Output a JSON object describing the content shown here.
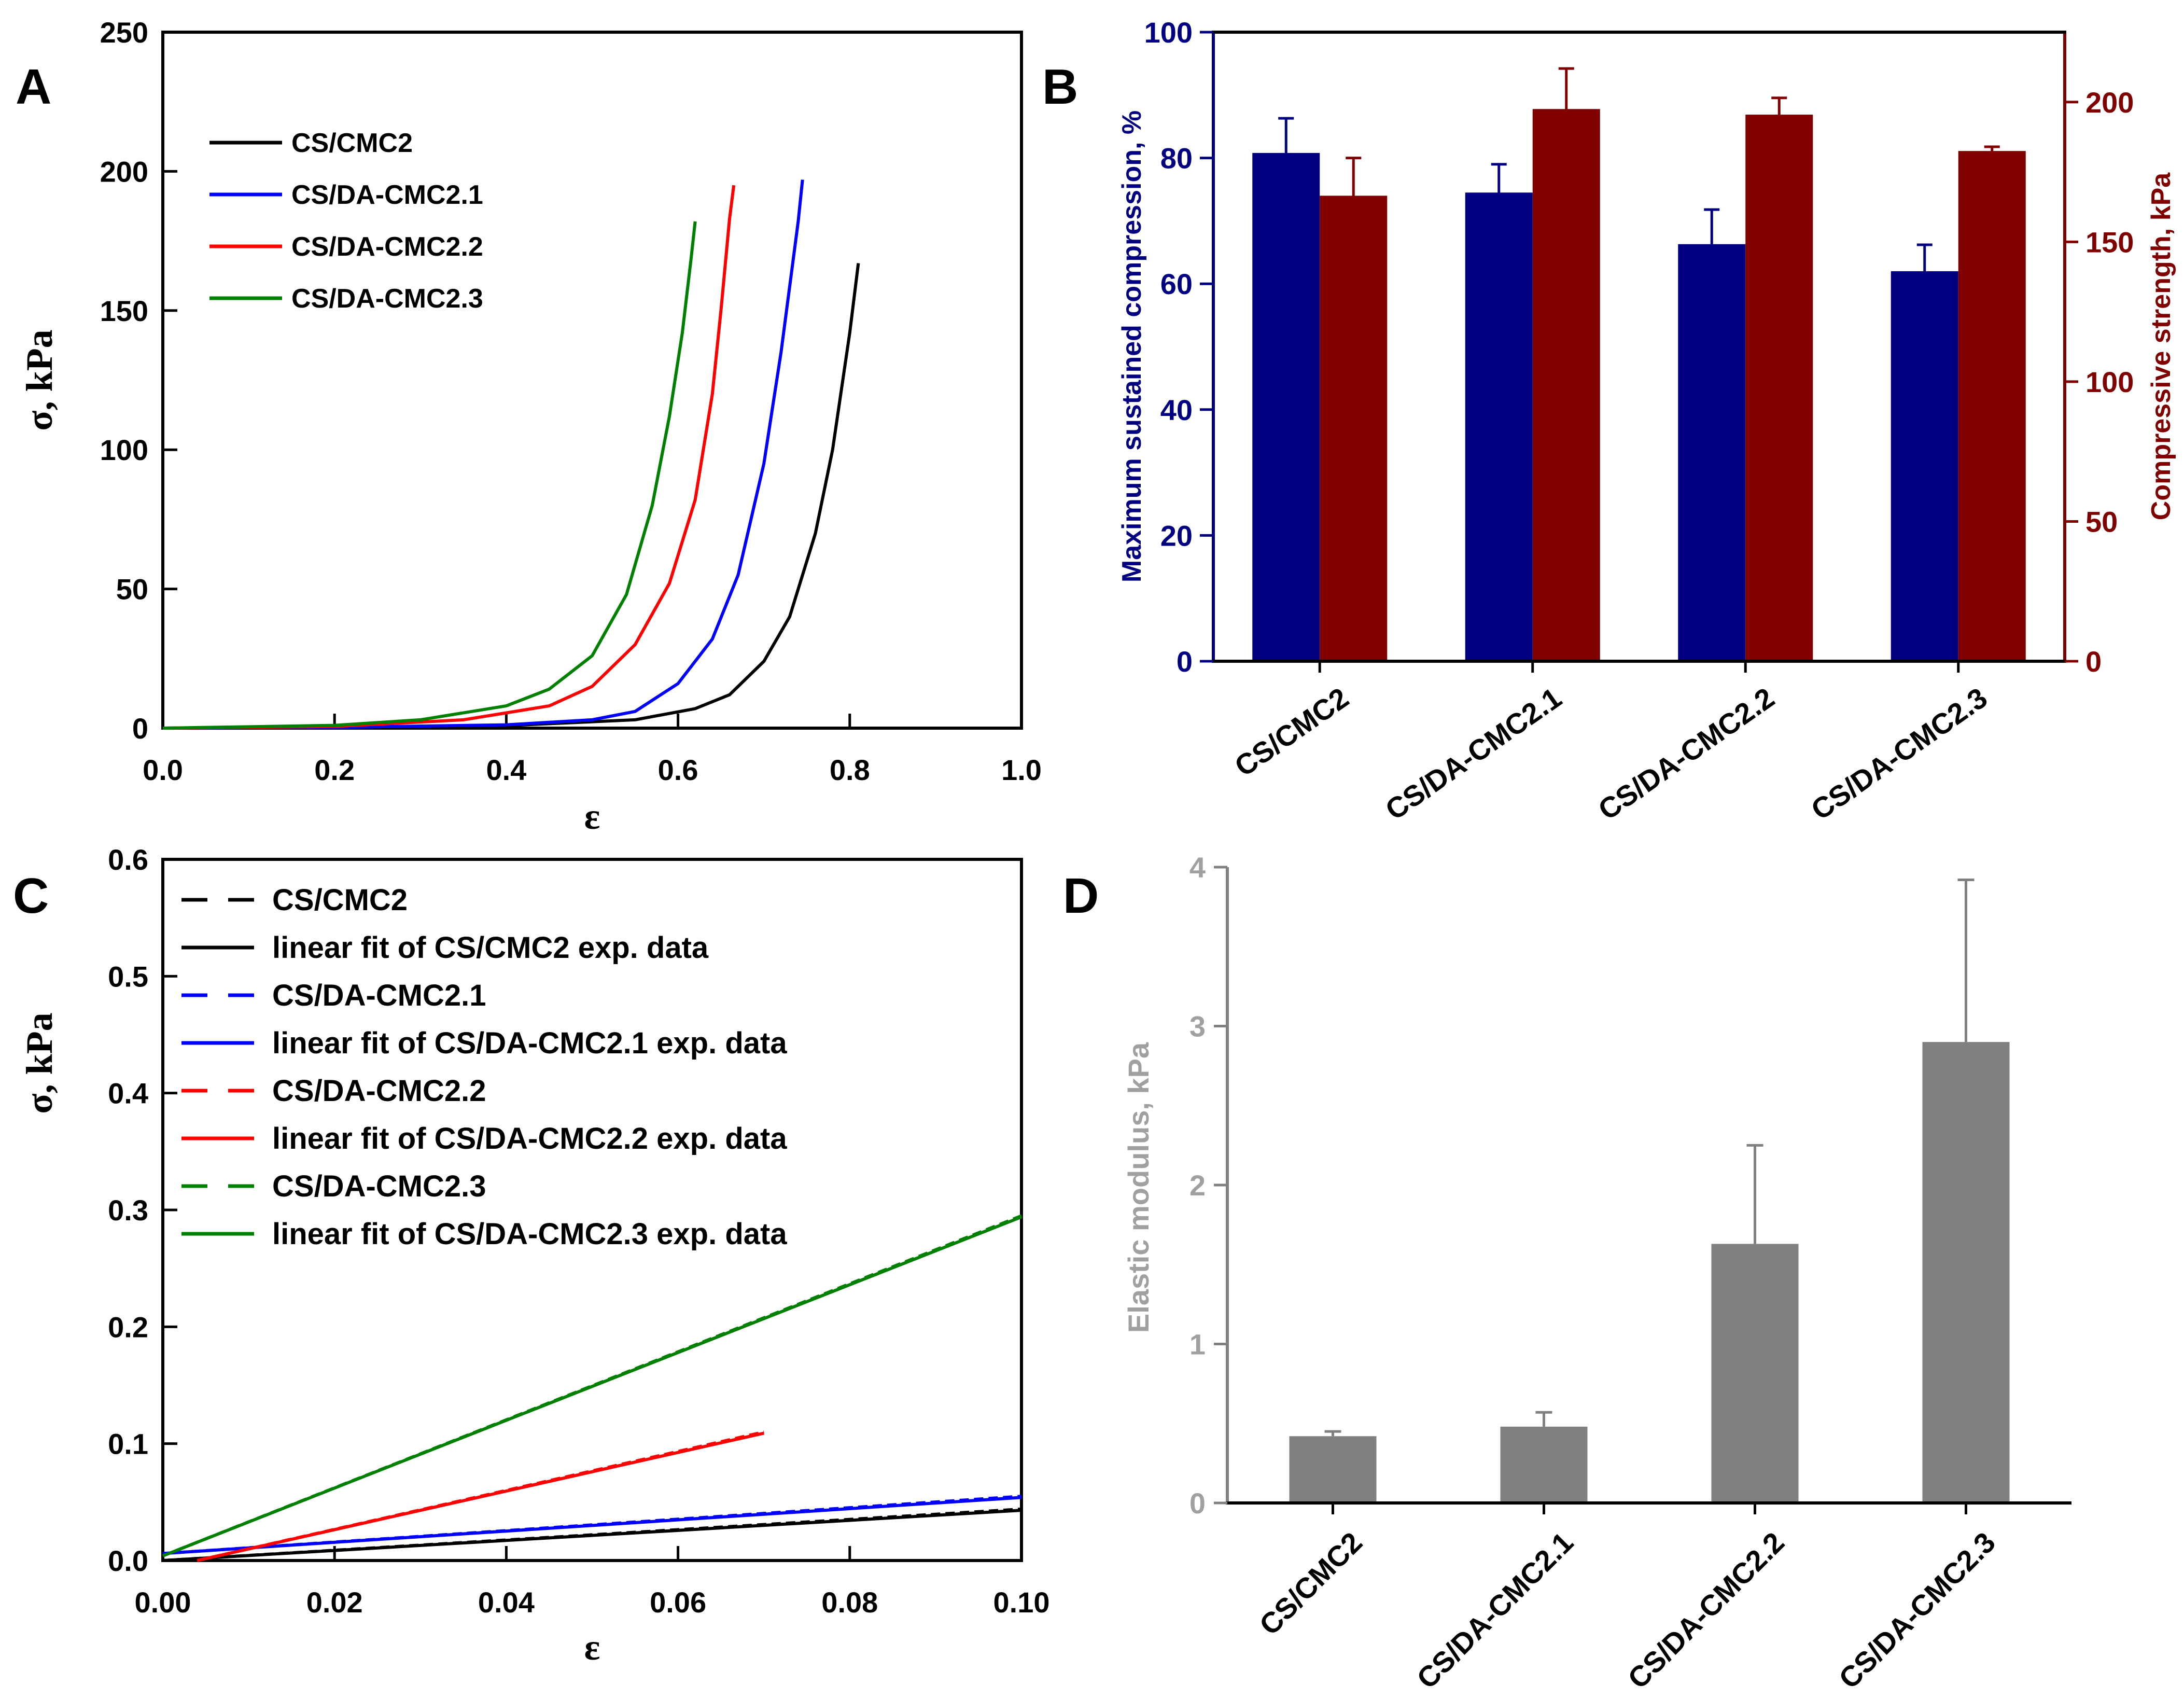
{
  "chart_data": [
    {
      "panel": "A",
      "type": "line",
      "xlabel": "ε",
      "ylabel": "σ, kPa",
      "xlim": [
        0.0,
        1.0
      ],
      "ylim": [
        0,
        250
      ],
      "xticks": [
        "0.0",
        "0.2",
        "0.4",
        "0.6",
        "0.8",
        "1.0"
      ],
      "yticks": [
        "0",
        "50",
        "100",
        "150",
        "200",
        "250"
      ],
      "legend_position": "top-left",
      "series": [
        {
          "name": "CS/CMC2",
          "color": "#000000",
          "x": [
            0.0,
            0.2,
            0.4,
            0.55,
            0.62,
            0.66,
            0.7,
            0.73,
            0.76,
            0.78,
            0.8,
            0.81
          ],
          "y": [
            0,
            0.3,
            0.9,
            3,
            7,
            12,
            24,
            40,
            70,
            100,
            142,
            167
          ]
        },
        {
          "name": "CS/DA-CMC2.1",
          "color": "#0000ff",
          "x": [
            0.0,
            0.2,
            0.4,
            0.5,
            0.55,
            0.6,
            0.64,
            0.67,
            0.7,
            0.72,
            0.74,
            0.745
          ],
          "y": [
            0,
            0.3,
            1.2,
            3,
            6,
            16,
            32,
            55,
            95,
            135,
            182,
            197
          ]
        },
        {
          "name": "CS/DA-CMC2.2",
          "color": "#ff0000",
          "x": [
            0.0,
            0.2,
            0.35,
            0.45,
            0.5,
            0.55,
            0.59,
            0.62,
            0.64,
            0.65,
            0.66,
            0.665
          ],
          "y": [
            0,
            0.6,
            3,
            8,
            15,
            30,
            52,
            82,
            120,
            150,
            183,
            195
          ]
        },
        {
          "name": "CS/DA-CMC2.3",
          "color": "#008000",
          "x": [
            0.0,
            0.2,
            0.3,
            0.4,
            0.45,
            0.5,
            0.54,
            0.57,
            0.59,
            0.605,
            0.615,
            0.62
          ],
          "y": [
            0,
            1,
            3,
            8,
            14,
            26,
            48,
            80,
            112,
            142,
            168,
            182
          ]
        }
      ]
    },
    {
      "panel": "B",
      "type": "bar",
      "categories": [
        "CS/CMC2",
        "CS/DA-CMC2.1",
        "CS/DA-CMC2.2",
        "CS/DA-CMC2.3"
      ],
      "ylabel_left": "Maximum sustained compression, %",
      "ylabel_right": "Compressive strength, kPa",
      "ylim_left": [
        0,
        100
      ],
      "ylim_right": [
        0,
        225
      ],
      "yticks_left": [
        "0",
        "20",
        "40",
        "60",
        "80",
        "100"
      ],
      "yticks_right": [
        "0",
        "50",
        "100",
        "150",
        "200"
      ],
      "left_color": "#000080",
      "right_color": "#800000",
      "series": [
        {
          "name": "Maximum sustained compression",
          "axis": "left",
          "color": "#000080",
          "values": [
            80.8,
            74.5,
            66.3,
            62.0
          ],
          "errors": [
            5.5,
            4.5,
            5.5,
            4.2
          ]
        },
        {
          "name": "Compressive strength",
          "axis": "right",
          "color": "#800000",
          "values": [
            166.5,
            197.5,
            195.5,
            182.5
          ],
          "errors": [
            13.5,
            14.5,
            6,
            1.5
          ]
        }
      ]
    },
    {
      "panel": "C",
      "type": "line",
      "xlabel": "ε",
      "ylabel": "σ, kPa",
      "xlim": [
        0.0,
        0.1
      ],
      "ylim": [
        0.0,
        0.6
      ],
      "xticks": [
        "0.00",
        "0.02",
        "0.04",
        "0.06",
        "0.08",
        "0.10"
      ],
      "yticks": [
        "0.0",
        "0.1",
        "0.2",
        "0.3",
        "0.4",
        "0.5",
        "0.6"
      ],
      "legend_position": "top-left",
      "series": [
        {
          "name": "CS/CMC2",
          "color": "#000000",
          "style": "dashed",
          "x": [
            0.0,
            0.1
          ],
          "y": [
            0.0,
            0.044
          ]
        },
        {
          "name": "linear fit of CS/CMC2 exp. data",
          "color": "#000000",
          "style": "solid",
          "x": [
            0.0,
            0.1
          ],
          "y": [
            0.0,
            0.043
          ]
        },
        {
          "name": "CS/DA-CMC2.1",
          "color": "#0000ff",
          "style": "dashed",
          "x": [
            0.0,
            0.1
          ],
          "y": [
            0.006,
            0.055
          ]
        },
        {
          "name": "linear fit of CS/DA-CMC2.1 exp. data",
          "color": "#0000ff",
          "style": "solid",
          "x": [
            0.0,
            0.1
          ],
          "y": [
            0.006,
            0.054
          ]
        },
        {
          "name": "CS/DA-CMC2.2",
          "color": "#ff0000",
          "style": "dashed",
          "x": [
            0.004,
            0.07
          ],
          "y": [
            0.0,
            0.11
          ]
        },
        {
          "name": "linear fit of CS/DA-CMC2.2 exp. data",
          "color": "#ff0000",
          "style": "solid",
          "x": [
            0.004,
            0.07
          ],
          "y": [
            0.0,
            0.109
          ]
        },
        {
          "name": "CS/DA-CMC2.3",
          "color": "#008000",
          "style": "dashed",
          "x": [
            0.0,
            0.1
          ],
          "y": [
            0.004,
            0.295
          ]
        },
        {
          "name": "linear fit of CS/DA-CMC2.3 exp. data",
          "color": "#008000",
          "style": "solid",
          "x": [
            0.0,
            0.1
          ],
          "y": [
            0.004,
            0.294
          ]
        }
      ]
    },
    {
      "panel": "D",
      "type": "bar",
      "categories": [
        "CS/CMC2",
        "CS/DA-CMC2.1",
        "CS/DA-CMC2.2",
        "CS/DA-CMC2.3"
      ],
      "ylabel": "Elastic modulus, kPa",
      "ylim": [
        0,
        4
      ],
      "yticks": [
        "0",
        "1",
        "2",
        "3",
        "4"
      ],
      "color": "#808080",
      "values": [
        0.42,
        0.48,
        1.63,
        2.9
      ],
      "errors": [
        0.03,
        0.09,
        0.62,
        1.02
      ]
    }
  ],
  "panels": {
    "a": "A",
    "b": "B",
    "c": "C",
    "d": "D"
  }
}
